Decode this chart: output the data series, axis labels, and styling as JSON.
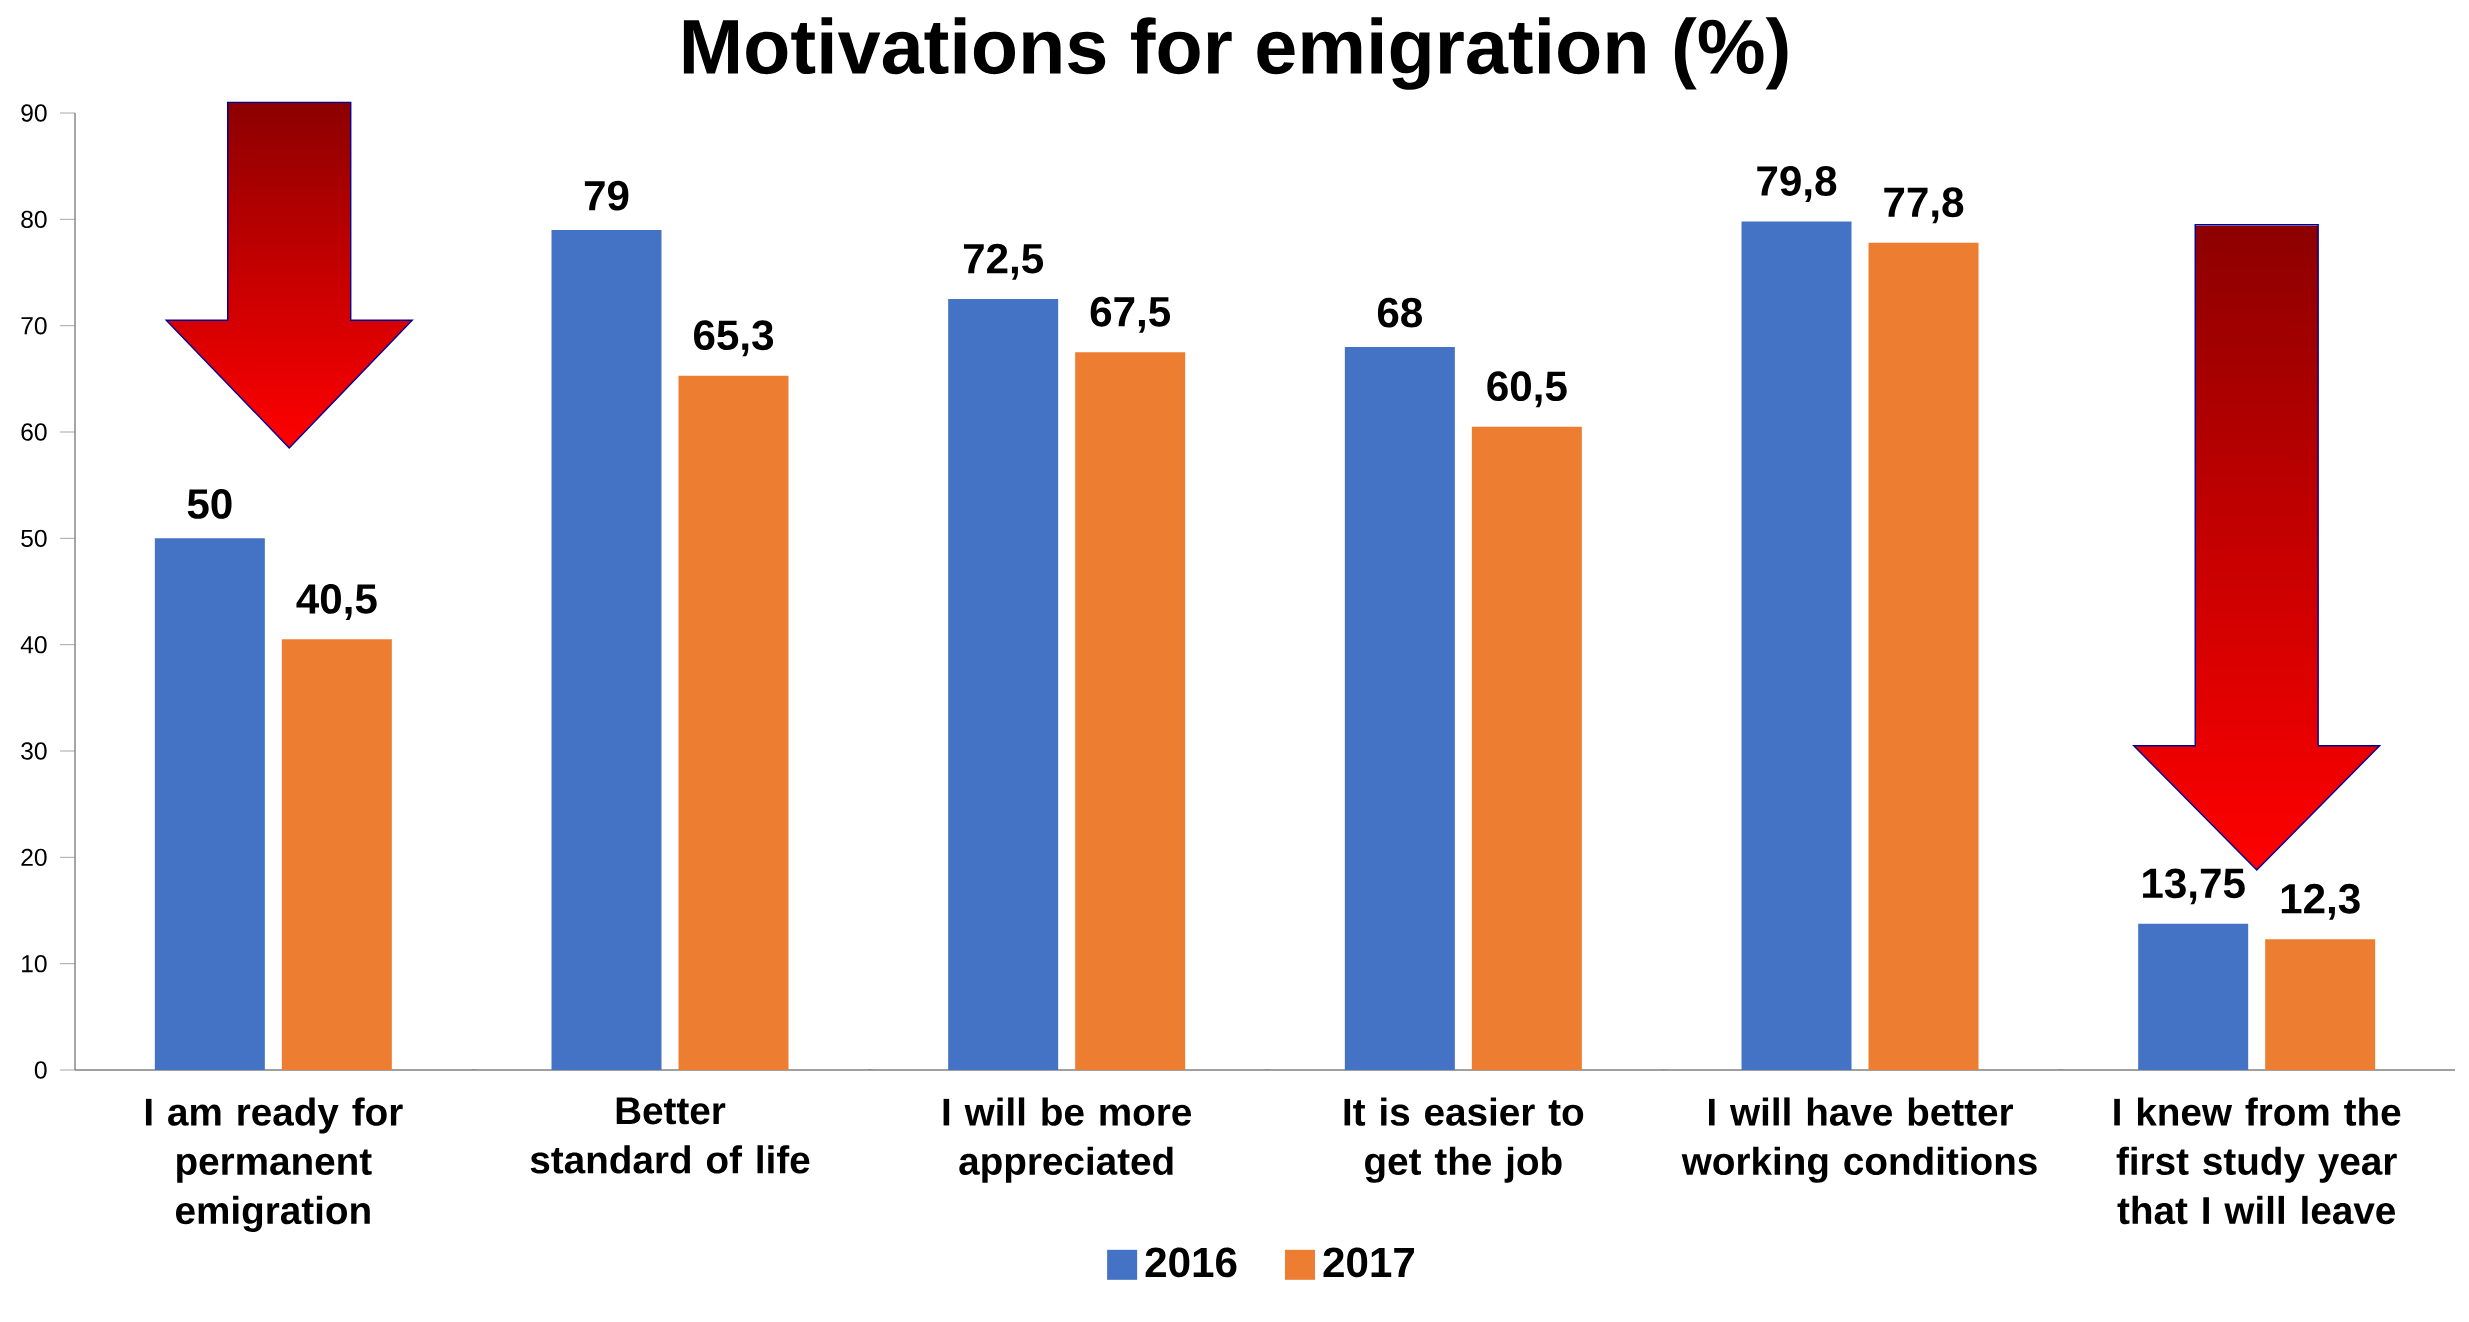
{
  "chart_data": {
    "type": "bar",
    "title": "Motivations for emigration  (%)",
    "categories": [
      "I am ready for permanent emigration",
      "Better standard of life",
      "I will be more appreciated",
      "It is easier to get the job",
      "I will have better working conditions",
      "I knew from the first study year that I will leave"
    ],
    "series": [
      {
        "name": "2016",
        "color": "#4472c4",
        "values": [
          50,
          79,
          72.5,
          68,
          79.8,
          13.75
        ],
        "value_labels": [
          "50",
          "79",
          "72,5",
          "68",
          "79,8",
          "13,75"
        ]
      },
      {
        "name": "2017",
        "color": "#ed7d31",
        "values": [
          40.5,
          65.3,
          67.5,
          60.5,
          77.8,
          12.3
        ],
        "value_labels": [
          "40,5",
          "65,3",
          "67,5",
          "60,5",
          "77,8",
          "12,3"
        ]
      }
    ],
    "ylim": [
      0,
      90
    ],
    "yticks": [
      0,
      10,
      20,
      30,
      40,
      50,
      60,
      70,
      80,
      90
    ],
    "grid": false,
    "legend": "bottom"
  }
}
